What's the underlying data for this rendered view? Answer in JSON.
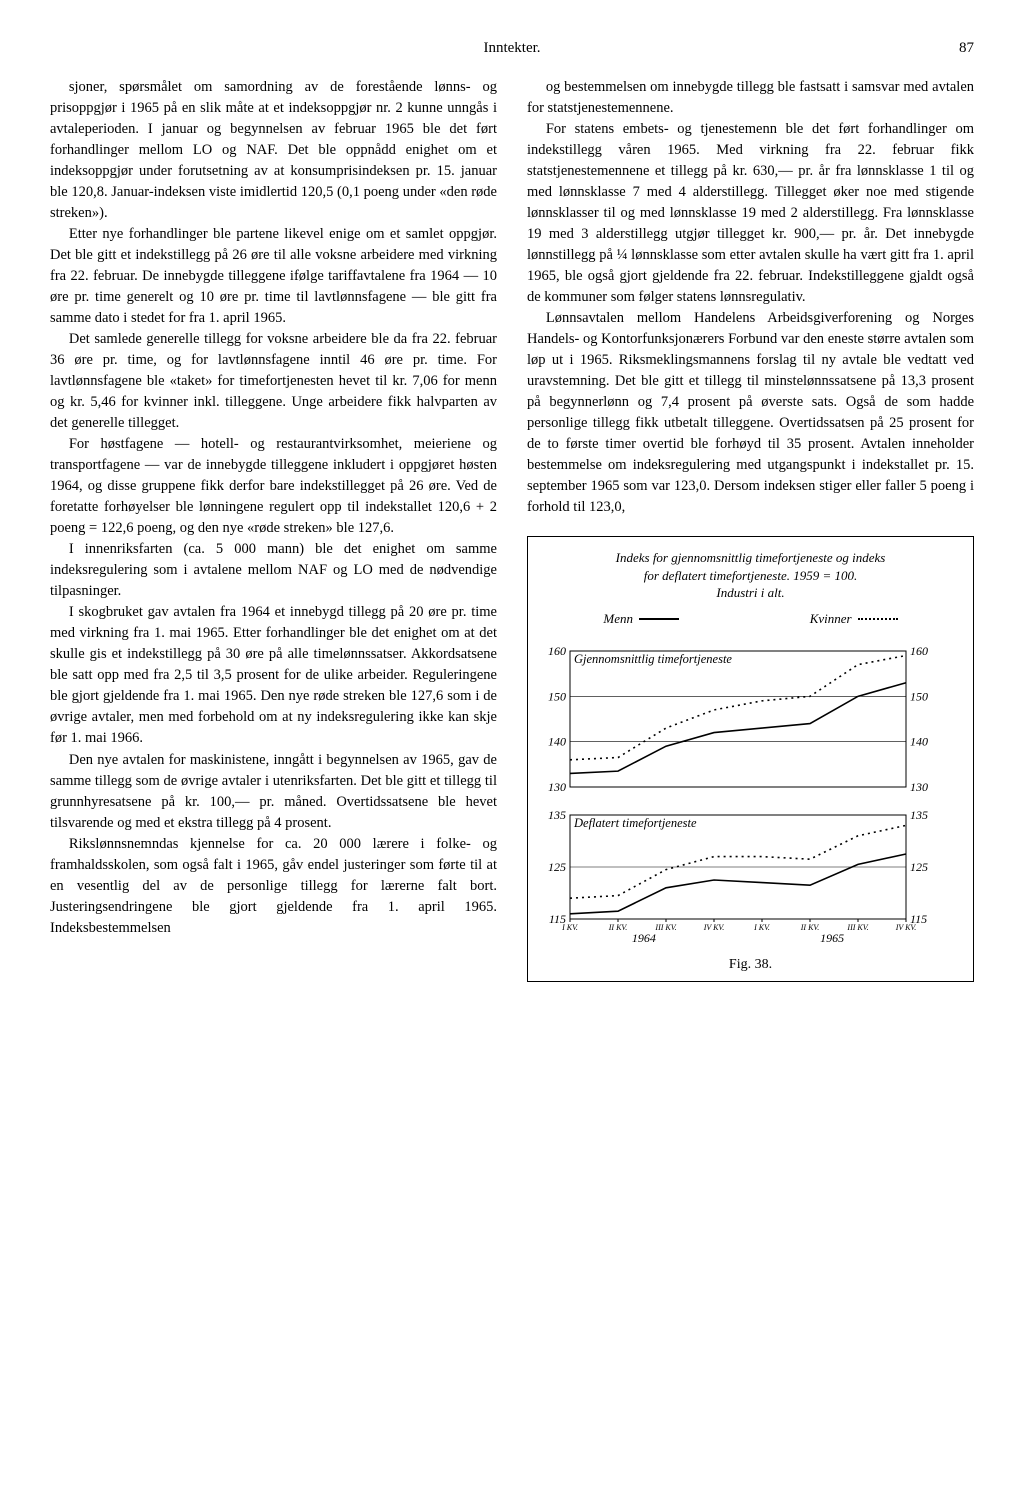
{
  "header": {
    "title": "Inntekter.",
    "page": "87"
  },
  "leftColumn": {
    "p1": "sjoner, spørsmålet om samordning av de forestående lønns- og prisoppgjør i 1965 på en slik måte at et indeksoppgjør nr. 2 kunne unngås i avtaleperioden. I januar og begynnelsen av februar 1965 ble det ført forhandlinger mellom LO og NAF. Det ble oppnådd enighet om et indeksoppgjør under forutsetning av at konsumprisindeksen pr. 15. januar ble 120,8. Januar-indeksen viste imidlertid 120,5 (0,1 poeng under «den røde streken»).",
    "p2": "Etter nye forhandlinger ble partene likevel enige om et samlet oppgjør. Det ble gitt et indekstillegg på 26 øre til alle voksne arbeidere med virkning fra 22. februar. De innebygde tilleggene ifølge tariffavtalene fra 1964 — 10 øre pr. time generelt og 10 øre pr. time til lavtlønnsfagene — ble gitt fra samme dato i stedet for fra 1. april 1965.",
    "p3": "Det samlede generelle tillegg for voksne arbeidere ble da fra 22. februar 36 øre pr. time, og for lavtlønnsfagene inntil 46 øre pr. time. For lavtlønnsfagene ble «taket» for timefortjenesten hevet til kr. 7,06 for menn og kr. 5,46 for kvinner inkl. tilleggene. Unge arbeidere fikk halvparten av det generelle tillegget.",
    "p4": "For høstfagene — hotell- og restaurantvirksomhet, meieriene og transportfagene — var de innebygde tilleggene inkludert i oppgjøret høsten 1964, og disse gruppene fikk derfor bare indekstillegget på 26 øre. Ved de foretatte forhøyelser ble lønningene regulert opp til indekstallet 120,6 + 2 poeng = 122,6 poeng, og den nye «røde streken» ble 127,6.",
    "p5": "I innenriksfarten (ca. 5 000 mann) ble det enighet om samme indeksregulering som i avtalene mellom NAF og LO med de nødvendige tilpasninger.",
    "p6": "I skogbruket gav avtalen fra 1964 et innebygd tillegg på 20 øre pr. time med virkning fra 1. mai 1965. Etter forhandlinger ble det enighet om at det skulle gis et indekstillegg på 30 øre på alle timelønnssatser. Akkordsatsene ble satt opp med fra 2,5 til 3,5 prosent for de ulike arbeider. Reguleringene ble gjort gjeldende fra 1. mai 1965. Den nye røde streken ble 127,6 som i de øvrige avtaler, men med forbehold om at ny indeksregulering ikke kan skje før 1. mai 1966.",
    "p7": "Den nye avtalen for maskinistene, inngått i begynnelsen av 1965, gav de samme tillegg som de øvrige avtaler i utenriksfarten. Det ble gitt et tillegg til grunnhyresatsene på kr. 100,— pr. måned. Overtidssatsene ble hevet tilsvarende og med et ekstra tillegg på 4 prosent.",
    "p8": "Rikslønnsnemndas kjennelse for ca. 20 000 lærere i folke- og framhaldsskolen, som også falt i 1965, gåv endel justeringer som førte til at en vesentlig del av de personlige tillegg for lærerne falt bort. Justeringsendringene ble gjort gjeldende fra 1. april 1965. Indeksbestemmelsen"
  },
  "rightColumn": {
    "p1": "og bestemmelsen om innebygde tillegg ble fastsatt i samsvar med avtalen for statstjenestemennene.",
    "p2": "For statens embets- og tjenestemenn ble det ført forhandlinger om indekstillegg våren 1965. Med virkning fra 22. februar fikk statstjenestemennene et tillegg på kr. 630,— pr. år fra lønnsklasse 1 til og med lønnsklasse 7 med 4 alderstillegg. Tillegget øker noe med stigende lønnsklasser til og med lønnsklasse 19 med 2 alderstillegg. Fra lønnsklasse 19 med 3 alderstillegg utgjør tillegget kr. 900,— pr. år. Det innebygde lønnstillegg på ¼ lønnsklasse som etter avtalen skulle ha vært gitt fra 1. april 1965, ble også gjort gjeldende fra 22. februar. Indekstilleggene gjaldt også de kommuner som følger statens lønnsregulativ.",
    "p3": "Lønnsavtalen mellom Handelens Arbeidsgiverforening og Norges Handels- og Kontorfunksjonærers Forbund var den eneste større avtalen som løp ut i 1965. Riksmeklingsmannens forslag til ny avtale ble vedtatt ved uravstemning. Det ble gitt et tillegg til minstelønnssatsene på 13,3 prosent på begynnerlønn og 7,4 prosent på øverste sats. Også de som hadde personlige tillegg fikk utbetalt tilleggene. Overtidssatsen på 25 prosent for de to første timer overtid ble forhøyd til 35 prosent. Avtalen inneholder bestemmelse om indeksregulering med utgangspunkt i indekstallet pr. 15. september 1965 som var 123,0. Dersom indeksen stiger eller faller 5 poeng i forhold til 123,0,"
  },
  "chart": {
    "title1": "Indeks for gjennomsnittlig timefortjeneste og indeks",
    "title2": "for deflatert timefortjeneste. 1959 = 100.",
    "title3": "Industri i alt.",
    "legend_menn": "Menn",
    "legend_kvinner": "Kvinner",
    "panel1_label": "Gjennomsnittlig timefortjeneste",
    "panel2_label": "Deflatert timefortjeneste",
    "fig_caption": "Fig. 38.",
    "panel1": {
      "ylim": [
        130,
        160
      ],
      "yticks": [
        130,
        140,
        150,
        160
      ],
      "menn": [
        133,
        133.5,
        139,
        142,
        143,
        144,
        150,
        153
      ],
      "kvinner": [
        136,
        136.5,
        143,
        147,
        149,
        150,
        157,
        159
      ]
    },
    "panel2": {
      "ylim": [
        115,
        135
      ],
      "yticks": [
        115,
        125,
        135
      ],
      "menn": [
        116,
        116.5,
        121,
        122.5,
        122,
        121.5,
        125.5,
        127.5
      ],
      "kvinner": [
        119,
        119.5,
        124.5,
        127,
        127,
        126.5,
        131,
        133
      ]
    },
    "xticks": [
      "I KV.",
      "II KV.",
      "III KV.",
      "IV KV.",
      "I KV.",
      "II KV.",
      "III KV.",
      "IV KV."
    ],
    "xyears": [
      "1964",
      "1965"
    ],
    "colors": {
      "axis": "#000000",
      "solid": "#000000",
      "dotted": "#000000",
      "grid": "#000000",
      "bg": "#ffffff"
    },
    "line_width": 1.6,
    "dotted_dash": "2,4"
  }
}
